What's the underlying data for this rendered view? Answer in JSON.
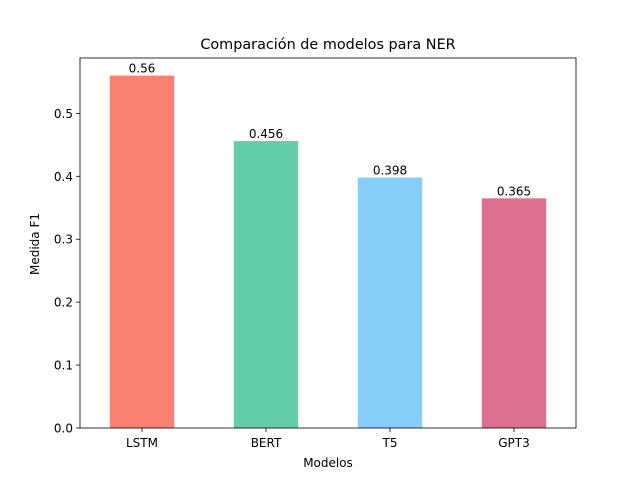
{
  "chart_data": {
    "type": "bar",
    "title": "Comparación de modelos para NER",
    "xlabel": "Modelos",
    "ylabel": "Medida F1",
    "categories": [
      "LSTM",
      "BERT",
      "T5",
      "GPT3"
    ],
    "values": [
      0.56,
      0.456,
      0.398,
      0.365
    ],
    "value_labels": [
      "0.56",
      "0.456",
      "0.398",
      "0.365"
    ],
    "bar_colors": [
      "#fa8072",
      "#66cdaa",
      "#87cefa",
      "#db7093"
    ],
    "ylim": [
      0,
      0.588
    ],
    "yticks": [
      0.0,
      0.1,
      0.2,
      0.3,
      0.4,
      0.5
    ],
    "ytick_labels": [
      "0.0",
      "0.1",
      "0.2",
      "0.3",
      "0.4",
      "0.5"
    ],
    "grid": false,
    "legend": false
  }
}
